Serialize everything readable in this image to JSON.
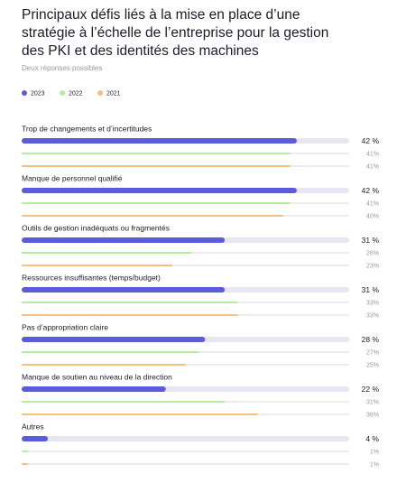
{
  "chart_data": {
    "type": "bar",
    "title": "Principaux défis liés à la mise en place d’une stratégie à l’échelle de l’entreprise pour la gestion des PKI et des identités des machines",
    "subtitle": "Deux réponses possibles",
    "categories": [
      "Trop de changements et d’incertitudes",
      "Manque de personnel qualifié",
      "Outils de gestion inadéquats ou fragmentés",
      "Ressources insuffisantes (temps/budget)",
      "Pas d’appropriation claire",
      "Manque de soutien au niveau de la direction",
      "Autres"
    ],
    "series": [
      {
        "name": "2023",
        "color": "#5b5bdc",
        "values": [
          42,
          42,
          31,
          31,
          28,
          22,
          4
        ],
        "value_labels": [
          "42 %",
          "42 %",
          "31 %",
          "31 %",
          "28 %",
          "22 %",
          "4 %"
        ]
      },
      {
        "name": "2022",
        "color": "#b4eea0",
        "values": [
          41,
          41,
          26,
          33,
          27,
          31,
          1
        ],
        "value_labels": [
          "41%",
          "41%",
          "26%",
          "33%",
          "27%",
          "31%",
          "1%"
        ]
      },
      {
        "name": "2021",
        "color": "#f4c27e",
        "values": [
          41,
          40,
          23,
          33,
          25,
          36,
          1
        ],
        "value_labels": [
          "41%",
          "40%",
          "23%",
          "33%",
          "25%",
          "36%",
          "1%"
        ]
      }
    ],
    "xlim": [
      0,
      50
    ]
  }
}
